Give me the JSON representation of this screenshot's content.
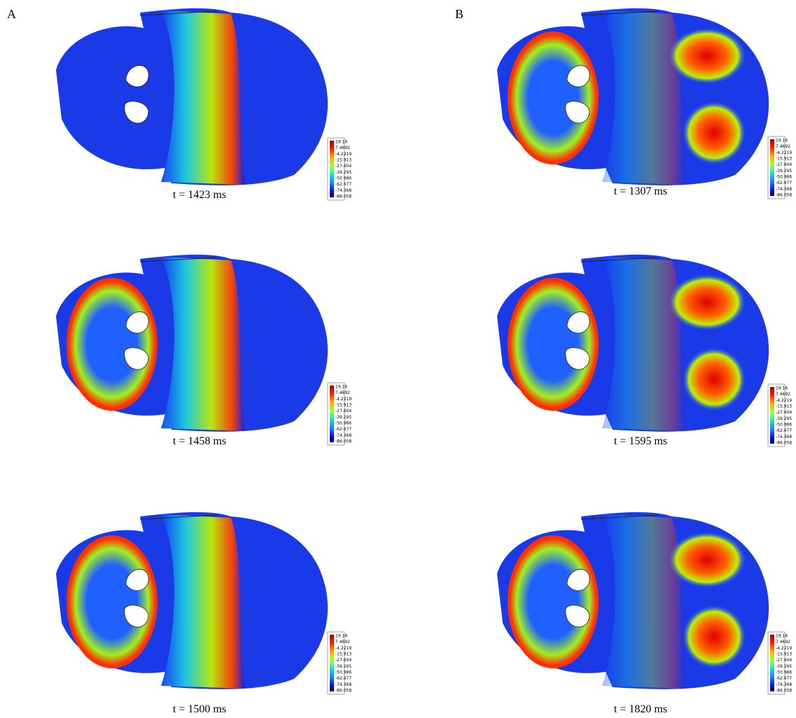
{
  "columns": [
    {
      "label": "A",
      "panels": [
        {
          "caption": "t = 1423 ms"
        },
        {
          "caption": "t = 1458 ms"
        },
        {
          "caption": "t = 1500 ms"
        }
      ]
    },
    {
      "label": "B",
      "panels": [
        {
          "caption": "t = 1307 ms"
        },
        {
          "caption": "t = 1595 ms"
        },
        {
          "caption": "t = 1820 ms"
        }
      ]
    }
  ],
  "colorbar": {
    "labels": [
      "19.16",
      "7.4692",
      "-4.2219",
      "-15.913",
      "-27.604",
      "-39.295",
      "-50.986",
      "-62.677",
      "-74.368",
      "-86.058"
    ]
  }
}
